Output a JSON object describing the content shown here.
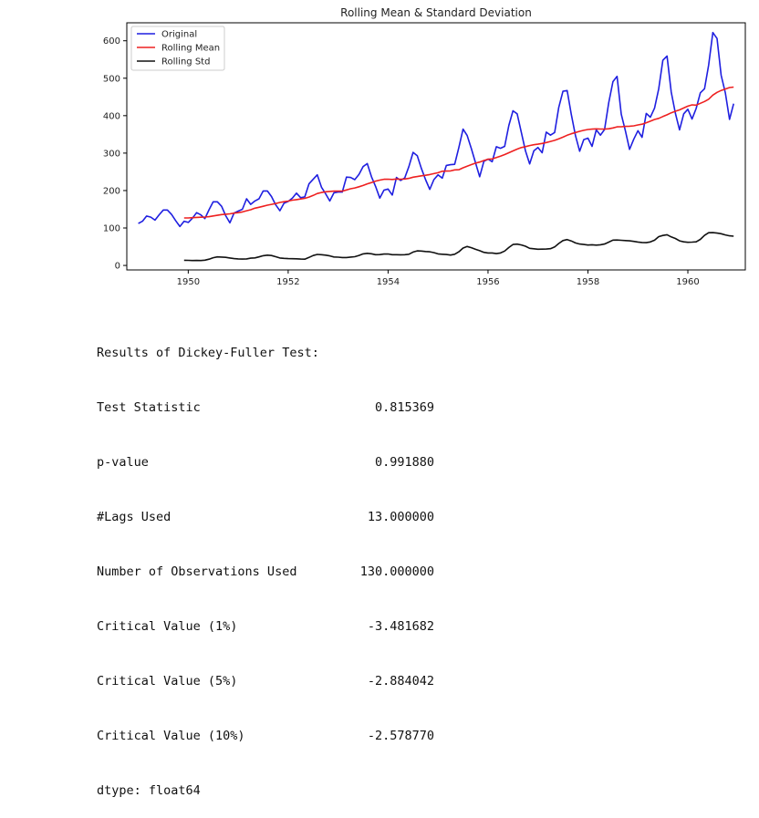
{
  "chart_data": {
    "type": "line",
    "title": "Rolling Mean & Standard Deviation",
    "xlim": [
      1948.77,
      1961.15
    ],
    "ylim": [
      -12,
      648
    ],
    "xticks": [
      1950,
      1952,
      1954,
      1956,
      1958,
      1960
    ],
    "yticks": [
      0,
      100,
      200,
      300,
      400,
      500,
      600
    ],
    "legend_position": "top-left",
    "x_start": 1949.0,
    "x_step": 0.083333,
    "window": 12,
    "series": [
      {
        "name": "Original",
        "color": "#1f1fe0",
        "values": [
          112,
          118,
          132,
          129,
          121,
          135,
          148,
          148,
          136,
          119,
          104,
          118,
          115,
          126,
          141,
          135,
          125,
          149,
          170,
          170,
          158,
          133,
          114,
          140,
          145,
          150,
          178,
          163,
          172,
          178,
          199,
          199,
          184,
          162,
          146,
          166,
          171,
          180,
          193,
          181,
          183,
          218,
          230,
          242,
          209,
          191,
          172,
          194,
          196,
          196,
          236,
          235,
          229,
          243,
          264,
          272,
          237,
          211,
          180,
          201,
          204,
          188,
          235,
          227,
          234,
          264,
          302,
          293,
          259,
          229,
          203,
          229,
          242,
          233,
          267,
          269,
          270,
          315,
          364,
          347,
          312,
          274,
          237,
          278,
          284,
          277,
          317,
          313,
          318,
          374,
          413,
          405,
          355,
          306,
          271,
          306,
          315,
          301,
          356,
          348,
          355,
          422,
          465,
          467,
          404,
          347,
          305,
          336,
          340,
          318,
          362,
          348,
          363,
          435,
          491,
          505,
          404,
          359,
          310,
          337,
          360,
          342,
          406,
          396,
          420,
          472,
          548,
          559,
          463,
          407,
          362,
          405,
          417,
          391,
          419,
          461,
          472,
          535,
          622,
          606,
          508,
          461,
          390,
          432
        ]
      },
      {
        "name": "Rolling Mean",
        "color": "#ee2020",
        "values": [
          null,
          null,
          null,
          null,
          null,
          null,
          null,
          null,
          null,
          null,
          null,
          126.7,
          126.9,
          127.6,
          128.3,
          128.8,
          129.2,
          130.3,
          132.2,
          134.0,
          135.8,
          136.9,
          137.8,
          139.7,
          140.9,
          142.8,
          146.0,
          148.8,
          152.8,
          155.3,
          157.9,
          160.8,
          163.1,
          165.3,
          168.2,
          170.2,
          171.9,
          174.4,
          175.8,
          177.4,
          179.2,
          182.6,
          187.0,
          192.0,
          194.8,
          196.8,
          197.8,
          198.3,
          198.4,
          198.4,
          201.6,
          204.7,
          207.0,
          210.0,
          213.4,
          217.8,
          221.3,
          225.2,
          227.8,
          230.2,
          230.3,
          229.6,
          230.8,
          230.3,
          230.7,
          232.5,
          235.7,
          237.5,
          239.3,
          240.8,
          242.7,
          245.3,
          247.7,
          251.5,
          252.1,
          252.6,
          255.2,
          255.7,
          260.8,
          265.1,
          269.4,
          273.2,
          276.0,
          280.2,
          283.6,
          284.3,
          288.0,
          291.8,
          296.0,
          300.9,
          305.8,
          310.8,
          314.8,
          317.3,
          320.3,
          322.3,
          323.8,
          325.7,
          328.2,
          331.2,
          334.1,
          338.2,
          342.5,
          347.6,
          351.7,
          355.1,
          358.2,
          360.8,
          363.0,
          364.1,
          364.8,
          364.3,
          364.0,
          365.1,
          367.2,
          370.2,
          370.3,
          371.4,
          371.8,
          372.8,
          375.2,
          377.3,
          381.0,
          385.2,
          389.8,
          392.8,
          397.6,
          402.3,
          407.6,
          411.8,
          415.4,
          420.6,
          425.3,
          428.8,
          428.1,
          433.0,
          437.8,
          443.8,
          454.8,
          462.2,
          467.3,
          471.3,
          475.0,
          476.2
        ]
      },
      {
        "name": "Rolling Std",
        "color": "#111111",
        "values": [
          null,
          null,
          null,
          null,
          null,
          null,
          null,
          null,
          null,
          null,
          null,
          13.7,
          13.5,
          13.1,
          13.3,
          13.2,
          14.0,
          16.7,
          20.7,
          22.9,
          22.4,
          21.5,
          20.0,
          18.1,
          17.5,
          16.9,
          17.4,
          19.4,
          20.2,
          22.8,
          26.1,
          27.4,
          26.4,
          23.4,
          19.9,
          18.9,
          18.3,
          18.0,
          17.6,
          17.0,
          16.8,
          21.4,
          26.5,
          29.5,
          28.7,
          27.4,
          25.6,
          22.6,
          22.0,
          21.0,
          21.0,
          22.3,
          23.3,
          26.8,
          30.9,
          32.4,
          31.1,
          28.7,
          29.0,
          30.3,
          30.5,
          28.6,
          28.7,
          28.4,
          28.6,
          30.0,
          35.8,
          38.9,
          38.5,
          37.2,
          36.4,
          34.2,
          30.9,
          29.9,
          29.2,
          27.6,
          30.0,
          36.4,
          46.5,
          50.6,
          47.5,
          43.0,
          39.5,
          34.9,
          33.2,
          33.3,
          31.6,
          33.3,
          38.5,
          47.8,
          56.0,
          57.0,
          54.7,
          51.2,
          45.6,
          44.4,
          43.2,
          43.5,
          43.7,
          44.8,
          49.3,
          58.6,
          66.5,
          69.2,
          65.4,
          60.0,
          57.1,
          55.9,
          54.4,
          55.3,
          54.3,
          55.3,
          57.2,
          62.2,
          67.6,
          67.9,
          67.2,
          66.5,
          65.6,
          64.2,
          62.6,
          61.4,
          60.8,
          62.7,
          67.3,
          76.8,
          80.0,
          81.9,
          76.1,
          72.1,
          65.7,
          63.1,
          61.9,
          62.2,
          63.0,
          69.7,
          80.2,
          87.3,
          87.6,
          86.3,
          84.8,
          81.5,
          79.2,
          78.1
        ]
      }
    ]
  },
  "results": {
    "header": "Results of Dickey-Fuller Test:",
    "rows": [
      {
        "label": "Test Statistic",
        "value": "0.815369"
      },
      {
        "label": "p-value",
        "value": "0.991880"
      },
      {
        "label": "#Lags Used",
        "value": "13.000000"
      },
      {
        "label": "Number of Observations Used",
        "value": "130.000000"
      },
      {
        "label": "Critical Value (1%)",
        "value": "-3.481682"
      },
      {
        "label": "Critical Value (5%)",
        "value": "-2.884042"
      },
      {
        "label": "Critical Value (10%)",
        "value": "-2.578770"
      }
    ],
    "dtype": "dtype: float64"
  }
}
